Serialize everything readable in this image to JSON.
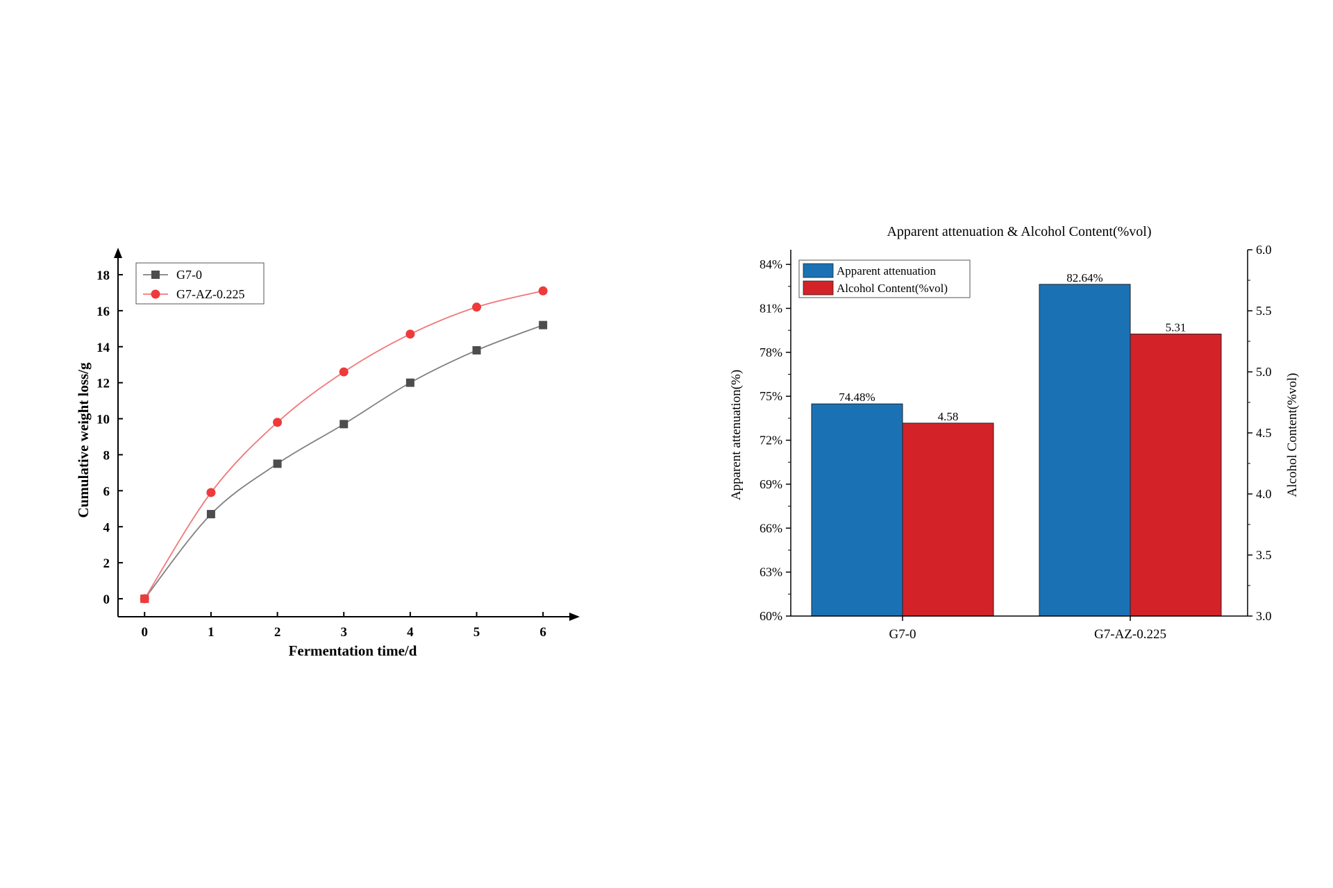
{
  "chart_data": [
    {
      "type": "line",
      "xlabel": "Fermentation time/d",
      "ylabel": "Cumulative weight loss/g",
      "x": [
        0,
        1,
        2,
        3,
        4,
        5,
        6
      ],
      "xticks": [
        "0",
        "1",
        "2",
        "3",
        "4",
        "5",
        "6"
      ],
      "yticks": [
        "0",
        "2",
        "4",
        "6",
        "8",
        "10",
        "12",
        "14",
        "16",
        "18"
      ],
      "xlim": [
        -0.4,
        6.5
      ],
      "ylim": [
        -1,
        19
      ],
      "legend_position": "top-left",
      "series": [
        {
          "name": "G7-0",
          "marker": "square",
          "color": "#4d4d4d",
          "line_color": "#808080",
          "values": [
            0,
            4.7,
            7.5,
            9.7,
            12.0,
            13.8,
            15.2
          ]
        },
        {
          "name": "G7-AZ-0.225",
          "marker": "circle",
          "color": "#ee3a3a",
          "line_color": "#f07878",
          "values": [
            0,
            5.9,
            9.8,
            12.6,
            14.7,
            16.2,
            17.1
          ]
        }
      ]
    },
    {
      "type": "bar",
      "title": "Apparent attenuation & Alcohol Content(%vol)",
      "categories": [
        "G7-0",
        "G7-AZ-0.225"
      ],
      "ylabel_left": "Apparent attenuation(%)",
      "ylabel_right": "Alcohol Content(%vol)",
      "ylim_left": [
        60,
        85
      ],
      "ylim_right": [
        3.0,
        6.0
      ],
      "yticks_left": [
        "60%",
        "63%",
        "66%",
        "69%",
        "72%",
        "75%",
        "78%",
        "81%",
        "84%"
      ],
      "yticks_right": [
        "3.0",
        "3.5",
        "4.0",
        "4.5",
        "5.0",
        "5.5",
        "6.0"
      ],
      "legend_position": "top-left",
      "series": [
        {
          "name": "Apparent attenuation",
          "axis": "left",
          "color": "#1a72b5",
          "values": [
            74.48,
            82.64
          ],
          "labels": [
            "74.48%",
            "82.64%"
          ]
        },
        {
          "name": "Alcohol Content(%vol)",
          "axis": "right",
          "color": "#d42229",
          "values": [
            4.58,
            5.31
          ],
          "labels": [
            "4.58",
            "5.31"
          ]
        }
      ]
    }
  ]
}
